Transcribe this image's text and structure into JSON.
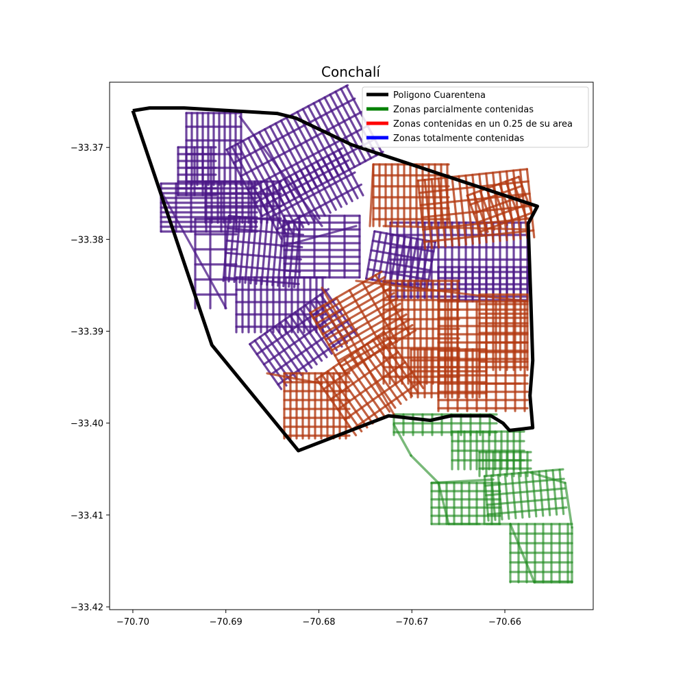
{
  "title": "Conchalí",
  "colors": {
    "quarantine": "#000000",
    "partial": "#1f8a1f",
    "quarter": "#b33a12",
    "total": "#4b1887",
    "border_mix": "#7a5a3a"
  },
  "legend": {
    "placement": "top-right",
    "items": [
      {
        "label": "Poligono Cuarentena",
        "color": "#000000"
      },
      {
        "label": "Zonas parcialmente contenidas",
        "color": "#008000"
      },
      {
        "label": "Zonas contenidas en un 0.25 de su area",
        "color": "#ff0000"
      },
      {
        "label": "Zonas totalmente contenidas",
        "color": "#0000ff"
      }
    ]
  },
  "chart_data": {
    "type": "map",
    "title": "Conchalí",
    "xlim": [
      -70.7025,
      -70.6505
    ],
    "ylim": [
      -33.4203,
      -33.3629
    ],
    "x_ticks": [
      -70.7,
      -70.69,
      -70.68,
      -70.67,
      -70.66
    ],
    "x_tick_labels": [
      "−70.70",
      "−70.69",
      "−70.68",
      "−70.67",
      "−70.66"
    ],
    "y_ticks": [
      -33.37,
      -33.38,
      -33.39,
      -33.4,
      -33.41,
      -33.42
    ],
    "y_tick_labels": [
      "−33.37",
      "−33.38",
      "−33.39",
      "−33.40",
      "−33.41",
      "−33.42"
    ],
    "quarantine_polygon": [
      [
        -70.7,
        -33.366
      ],
      [
        -70.6982,
        -33.3657
      ],
      [
        -70.6945,
        -33.3657
      ],
      [
        -70.6845,
        -33.3663
      ],
      [
        -70.6825,
        -33.3668
      ],
      [
        -70.6765,
        -33.3697
      ],
      [
        -70.6565,
        -33.3764
      ],
      [
        -70.6575,
        -33.3783
      ],
      [
        -70.6572,
        -33.3868
      ],
      [
        -70.657,
        -33.3932
      ],
      [
        -70.6573,
        -33.397
      ],
      [
        -70.657,
        -33.4005
      ],
      [
        -70.6595,
        -33.4008
      ],
      [
        -70.6602,
        -33.4
      ],
      [
        -70.6615,
        -33.3992
      ],
      [
        -70.6658,
        -33.3992
      ],
      [
        -70.668,
        -33.3997
      ],
      [
        -70.6725,
        -33.3992
      ],
      [
        -70.6822,
        -33.403
      ],
      [
        -70.6915,
        -33.3915
      ],
      [
        -70.7,
        -33.366
      ]
    ],
    "regions": [
      {
        "category": "Zonas totalmente contenidas",
        "center": [
          -70.69,
          -33.3745
        ]
      },
      {
        "category": "Zonas totalmente contenidas",
        "center": [
          -70.681,
          -33.372
        ]
      },
      {
        "category": "Zonas totalmente contenidas",
        "center": [
          -70.663,
          -33.3825
        ]
      },
      {
        "category": "Zonas totalmente contenidas",
        "center": [
          -70.682,
          -33.391
        ]
      },
      {
        "category": "Zonas contenidas en un 0.25 de su area",
        "center": [
          -70.666,
          -33.376
        ]
      },
      {
        "category": "Zonas contenidas en un 0.25 de su area",
        "center": [
          -70.667,
          -33.3905
        ]
      },
      {
        "category": "Zonas contenidas en un 0.25 de su area",
        "center": [
          -70.676,
          -33.3975
        ]
      },
      {
        "category": "Zonas parcialmente contenidas",
        "center": [
          -70.6625,
          -33.404
        ]
      },
      {
        "category": "Zonas parcialmente contenidas",
        "center": [
          -70.665,
          -33.4085
        ]
      },
      {
        "category": "Zonas parcialmente contenidas",
        "center": [
          -70.658,
          -33.4135
        ]
      }
    ]
  }
}
